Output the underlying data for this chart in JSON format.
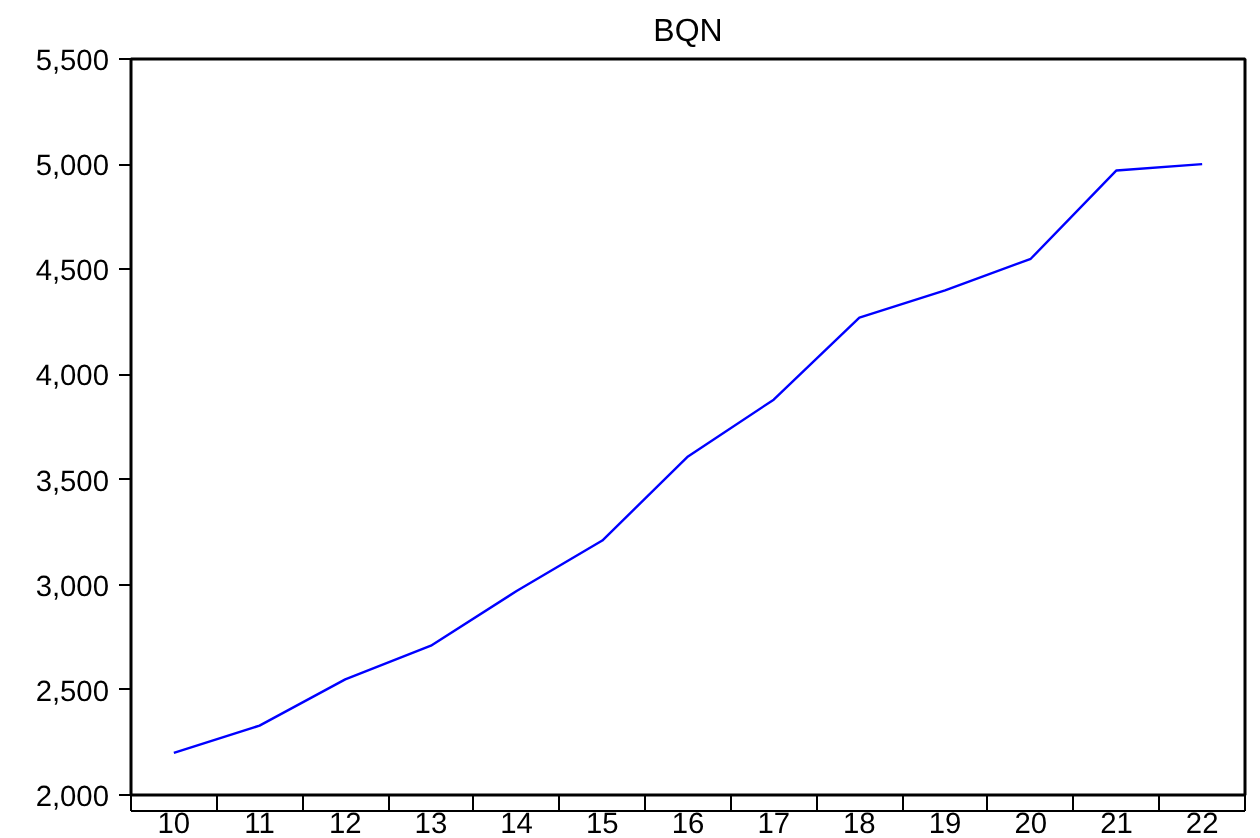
{
  "chart_data": {
    "type": "line",
    "title": "BQN",
    "categories": [
      "10",
      "11",
      "12",
      "13",
      "14",
      "15",
      "16",
      "17",
      "18",
      "19",
      "20",
      "21",
      "22"
    ],
    "series": [
      {
        "color": "#0000ff",
        "values": [
          2200,
          2330,
          2550,
          2710,
          2970,
          3210,
          3610,
          3880,
          4270,
          4400,
          4550,
          4970,
          5000
        ]
      }
    ],
    "ylim": [
      2000,
      5500
    ],
    "yticks": [
      {
        "value": 2000,
        "label": "2,000"
      },
      {
        "value": 2500,
        "label": "2,500"
      },
      {
        "value": 3000,
        "label": "3,000"
      },
      {
        "value": 3500,
        "label": "3,500"
      },
      {
        "value": 4000,
        "label": "4,000"
      },
      {
        "value": 4500,
        "label": "4,500"
      },
      {
        "value": 5000,
        "label": "5,000"
      },
      {
        "value": 5500,
        "label": "5,500"
      }
    ],
    "grid": false
  }
}
